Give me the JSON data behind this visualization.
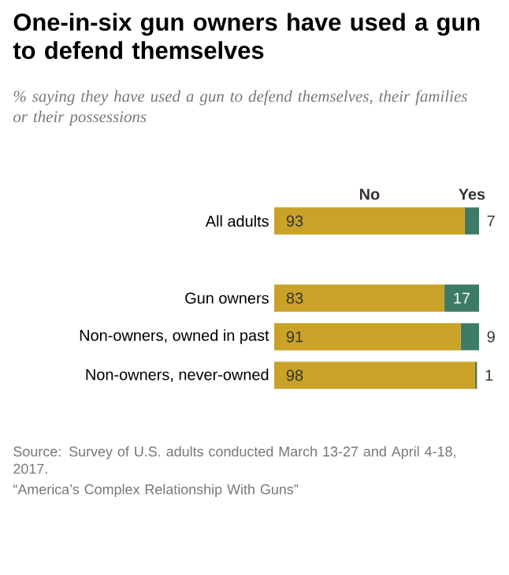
{
  "chart_data": {
    "type": "bar",
    "orientation": "horizontal",
    "stacked": true,
    "title": "One-in-six gun owners have used a gun to defend themselves",
    "subtitle": "% saying they have used a gun to defend themselves, their families or their possessions",
    "categories": [
      "All adults",
      null,
      "Gun owners",
      "Non-owners, owned in past",
      "Non-owners, never-owned"
    ],
    "series": [
      {
        "name": "No",
        "color": "#c9a227",
        "values": [
          93,
          null,
          83,
          91,
          98
        ]
      },
      {
        "name": "Yes",
        "color": "#3e7b67",
        "values": [
          7,
          null,
          17,
          9,
          1
        ]
      }
    ],
    "data_labels": true,
    "legend": "top",
    "annotations": [
      "Source: Survey of U.S. adults conducted March 13-27 and April 4-18, 2017.",
      "“America’s Complex Relationship With Guns”"
    ]
  }
}
